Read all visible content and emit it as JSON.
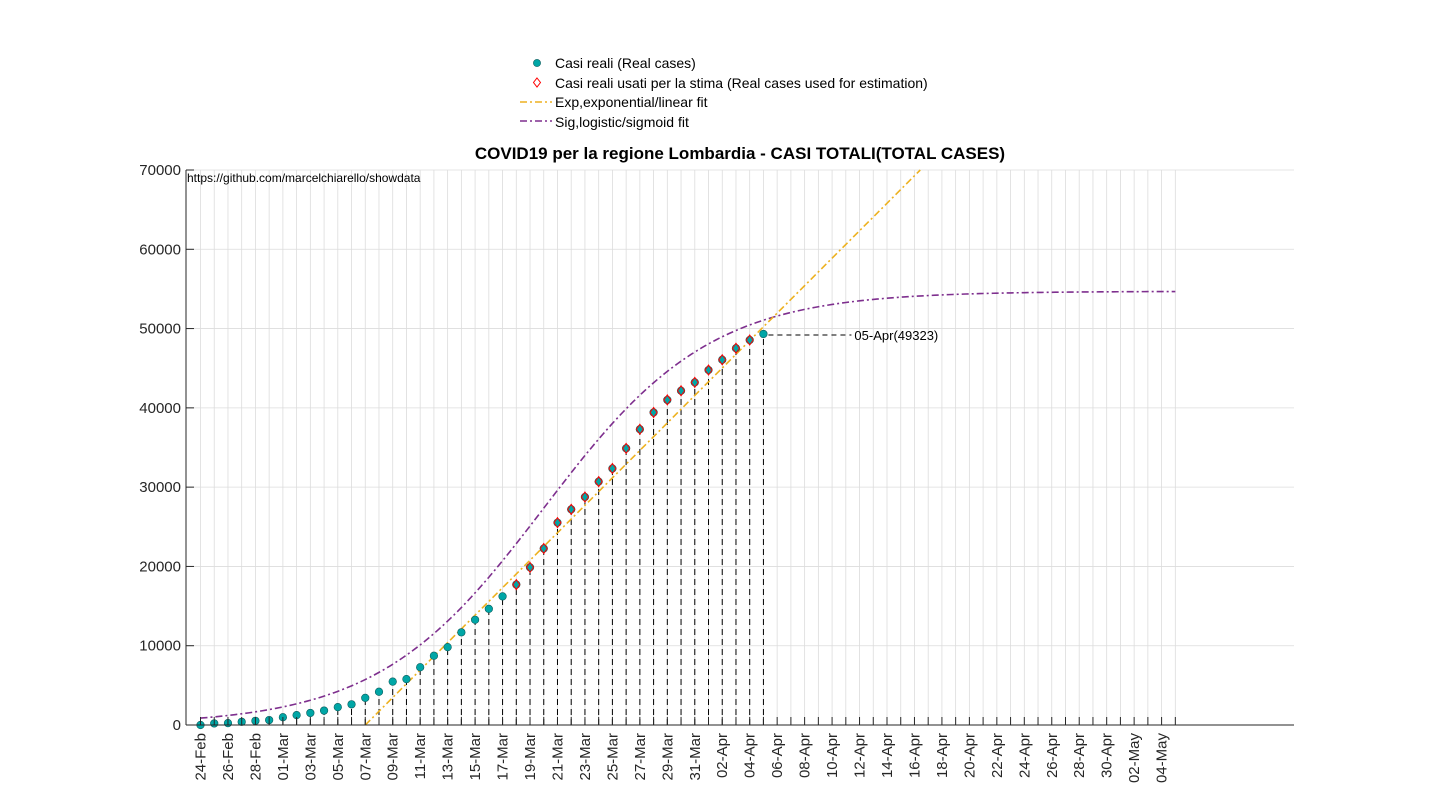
{
  "chart_data": {
    "type": "scatter",
    "title": "COVID19 per la regione Lombardia - CASI TOTALI(TOTAL CASES)",
    "source_text": "https://github.com/marcelchiarello/showdata",
    "xlabel": "",
    "ylabel": "",
    "ylim": [
      0,
      70000
    ],
    "yticks": [
      0,
      10000,
      20000,
      30000,
      40000,
      50000,
      60000,
      70000
    ],
    "grid": true,
    "legend_position": "top",
    "x_start_date": "24-Feb",
    "x_dates": [
      "24-Feb",
      "25-Feb",
      "26-Feb",
      "27-Feb",
      "28-Feb",
      "29-Feb",
      "01-Mar",
      "02-Mar",
      "03-Mar",
      "04-Mar",
      "05-Mar",
      "06-Mar",
      "07-Mar",
      "08-Mar",
      "09-Mar",
      "10-Mar",
      "11-Mar",
      "12-Mar",
      "13-Mar",
      "14-Mar",
      "15-Mar",
      "16-Mar",
      "17-Mar",
      "18-Mar",
      "19-Mar",
      "20-Mar",
      "21-Mar",
      "22-Mar",
      "23-Mar",
      "24-Mar",
      "25-Mar",
      "26-Mar",
      "27-Mar",
      "28-Mar",
      "29-Mar",
      "30-Mar",
      "31-Mar",
      "01-Apr",
      "02-Apr",
      "03-Apr",
      "04-Apr",
      "05-Apr",
      "06-Apr",
      "07-Apr",
      "08-Apr",
      "09-Apr",
      "10-Apr",
      "11-Apr",
      "12-Apr",
      "13-Apr",
      "14-Apr",
      "15-Apr",
      "16-Apr",
      "17-Apr",
      "18-Apr",
      "19-Apr",
      "20-Apr",
      "21-Apr",
      "22-Apr",
      "23-Apr",
      "24-Apr",
      "25-Apr",
      "26-Apr",
      "27-Apr",
      "28-Apr",
      "29-Apr",
      "30-Apr",
      "01-May",
      "02-May",
      "03-May",
      "04-May",
      "05-May"
    ],
    "x_tick_labels": [
      "24-Feb",
      "26-Feb",
      "28-Feb",
      "01-Mar",
      "03-Mar",
      "05-Mar",
      "07-Mar",
      "09-Mar",
      "11-Mar",
      "13-Mar",
      "15-Mar",
      "17-Mar",
      "19-Mar",
      "21-Mar",
      "23-Mar",
      "25-Mar",
      "27-Mar",
      "29-Mar",
      "31-Mar",
      "02-Apr",
      "04-Apr",
      "06-Apr",
      "08-Apr",
      "10-Apr",
      "12-Apr",
      "14-Apr",
      "16-Apr",
      "18-Apr",
      "20-Apr",
      "22-Apr",
      "24-Apr",
      "26-Apr",
      "28-Apr",
      "30-Apr",
      "02-May",
      "04-May"
    ],
    "series": [
      {
        "name": "Casi reali (Real cases)",
        "kind": "points",
        "marker": "filled-circle",
        "color": "#00A6A6",
        "values": [
          0,
          200,
          240,
          400,
          530,
          620,
          980,
          1250,
          1520,
          1820,
          2250,
          2610,
          3420,
          4190,
          5470,
          5790,
          7280,
          8730,
          9820,
          11690,
          13270,
          14650,
          16220,
          17710,
          19880,
          22260,
          25520,
          27200,
          28760,
          30700,
          32350,
          34890,
          37300,
          39420,
          41000,
          42160,
          43210,
          44770,
          46070,
          47520,
          48560,
          49323
        ]
      },
      {
        "name": "Casi reali usati per la stima (Real cases used for estimation)",
        "kind": "points",
        "marker": "open-diamond",
        "color": "#FF0000",
        "x_dates": [
          "18-Mar",
          "19-Mar",
          "20-Mar",
          "21-Mar",
          "22-Mar",
          "23-Mar",
          "24-Mar",
          "25-Mar",
          "26-Mar",
          "27-Mar",
          "28-Mar",
          "29-Mar",
          "30-Mar",
          "31-Mar",
          "01-Apr",
          "02-Apr",
          "03-Apr",
          "04-Apr"
        ],
        "values": [
          17710,
          19880,
          22260,
          25520,
          27200,
          28760,
          30700,
          32350,
          34890,
          37300,
          39420,
          41000,
          42160,
          43210,
          44770,
          46070,
          47520,
          48560
        ]
      },
      {
        "name": "Exp,exponential/linear fit",
        "kind": "line",
        "style": "dash-dot",
        "color": "#EDB120",
        "x_dates": [
          "07-Mar",
          "17-Apr"
        ],
        "values": [
          0,
          71000
        ]
      },
      {
        "name": "Sig,logistic/sigmoid fit",
        "kind": "line",
        "style": "dash-dot",
        "color": "#7E2F8E",
        "logistic": {
          "max": 54700,
          "midpoint_date": "20-Mar",
          "growth_per_day": 0.165
        }
      }
    ],
    "annotations": [
      {
        "text": "05-Apr(49323)",
        "x_date": "05-Apr",
        "y": 49323
      }
    ]
  }
}
